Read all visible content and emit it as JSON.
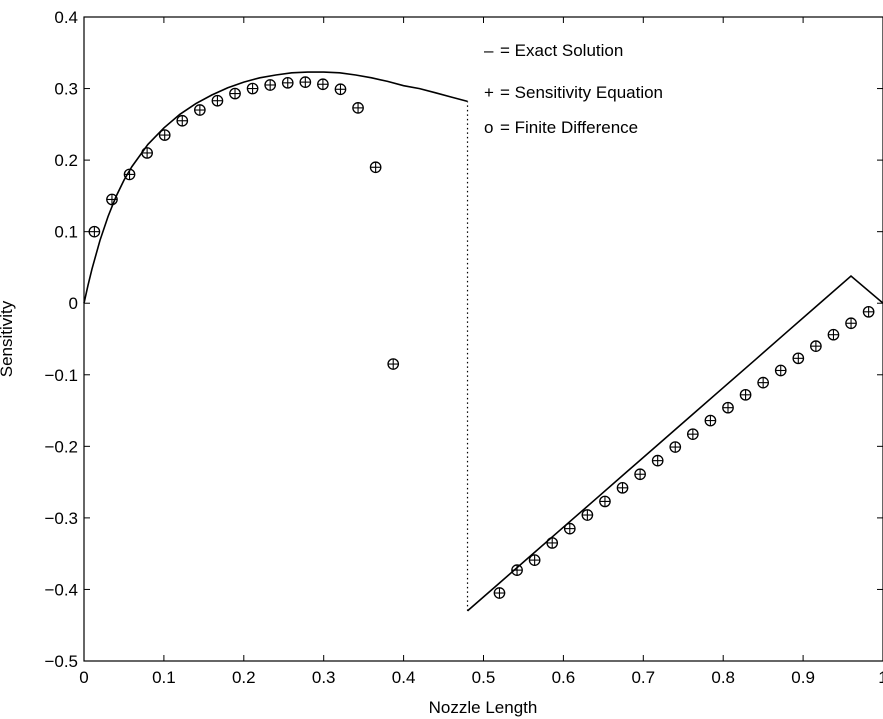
{
  "chart_data": {
    "type": "line",
    "xlabel": "Nozzle Length",
    "ylabel": "Sensitivity",
    "xlim": [
      0,
      1
    ],
    "ylim": [
      -0.5,
      0.4
    ],
    "x_ticks": [
      "0",
      "0.1",
      "0.2",
      "0.3",
      "0.4",
      "0.5",
      "0.6",
      "0.7",
      "0.8",
      "0.9",
      "1"
    ],
    "y_ticks": [
      "-0.5",
      "-0.4",
      "-0.3",
      "-0.2",
      "-0.1",
      "0",
      "0.1",
      "0.2",
      "0.3",
      "0.4"
    ],
    "grid": false,
    "legend_placement": "top-center",
    "legend": [
      {
        "marker": "–",
        "text": "= Exact Solution"
      },
      {
        "marker": "+",
        "text": "= Sensitivity Equation"
      },
      {
        "marker": "o",
        "text": "= Finite Difference"
      }
    ],
    "series": [
      {
        "style": "solid-line",
        "segments": [
          {
            "x": [
              0.0,
              0.005,
              0.01,
              0.02,
              0.03,
              0.04,
              0.05,
              0.06,
              0.08,
              0.1,
              0.12,
              0.14,
              0.16,
              0.18,
              0.2,
              0.22,
              0.24,
              0.26,
              0.28,
              0.3,
              0.32,
              0.34,
              0.36,
              0.38,
              0.4,
              0.42,
              0.44,
              0.46,
              0.48
            ],
            "y": [
              0.0,
              0.025,
              0.048,
              0.088,
              0.121,
              0.149,
              0.172,
              0.191,
              0.222,
              0.245,
              0.264,
              0.279,
              0.291,
              0.301,
              0.309,
              0.315,
              0.319,
              0.322,
              0.323,
              0.323,
              0.322,
              0.319,
              0.315,
              0.31,
              0.304,
              0.3,
              0.294,
              0.288,
              0.282
            ]
          },
          {
            "x": [
              0.48,
              0.52,
              0.56,
              0.6,
              0.64,
              0.68,
              0.72,
              0.76,
              0.8,
              0.84,
              0.88,
              0.92,
              0.96,
              1.0
            ],
            "y": [
              -0.43,
              -0.391,
              -0.352,
              -0.313,
              -0.274,
              -0.235,
              -0.196,
              -0.157,
              -0.118,
              -0.079,
              -0.04,
              -0.001,
              0.038,
              0.0
            ]
          }
        ]
      },
      {
        "style": "dotted-line",
        "x": [
          0.48,
          0.48
        ],
        "y": [
          -0.43,
          0.282
        ]
      },
      {
        "style": "circle-plus-markers",
        "x": [
          0.013,
          0.035,
          0.057,
          0.079,
          0.101,
          0.123,
          0.145,
          0.167,
          0.189,
          0.211,
          0.233,
          0.255,
          0.277,
          0.299,
          0.321,
          0.343,
          0.365,
          0.387,
          0.52,
          0.542,
          0.564,
          0.586,
          0.608,
          0.63,
          0.652,
          0.674,
          0.696,
          0.718,
          0.74,
          0.762,
          0.784,
          0.806,
          0.828,
          0.85,
          0.872,
          0.894,
          0.916,
          0.938,
          0.96,
          0.982
        ],
        "y": [
          0.1,
          0.145,
          0.18,
          0.21,
          0.235,
          0.255,
          0.27,
          0.283,
          0.293,
          0.3,
          0.305,
          0.308,
          0.309,
          0.306,
          0.299,
          0.273,
          0.19,
          -0.085,
          -0.405,
          -0.373,
          -0.359,
          -0.335,
          -0.315,
          -0.296,
          -0.277,
          -0.258,
          -0.239,
          -0.22,
          -0.201,
          -0.183,
          -0.164,
          -0.146,
          -0.128,
          -0.111,
          -0.094,
          -0.077,
          -0.06,
          -0.044,
          -0.028,
          -0.012
        ]
      }
    ]
  }
}
